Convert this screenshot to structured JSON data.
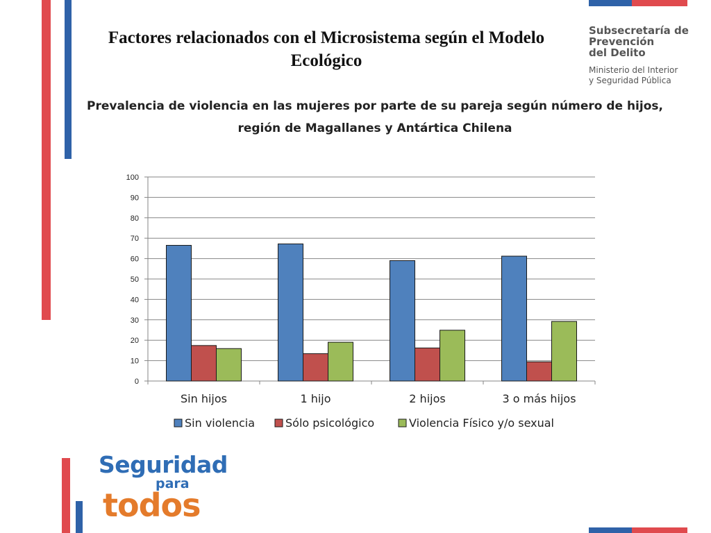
{
  "slide": {
    "title": "Factores relacionados con el Microsistema según el Modelo Ecológico"
  },
  "logo_top": {
    "line1": "Subsecretaría de",
    "line2": "Prevención",
    "line3": "del Delito",
    "line4": "Ministerio del Interior",
    "line5": "y Seguridad Pública"
  },
  "logo_bottom": {
    "word1": "Seguridad",
    "word2": "para",
    "word3": "todos"
  },
  "colors": {
    "stripe_red": "#e04a4e",
    "stripe_blue": "#2f62a8",
    "series_blue": "#4f81bd",
    "series_red": "#c0504d",
    "series_green": "#9bbb59",
    "gridline": "#868686"
  },
  "chart_data": {
    "type": "bar",
    "title_line1": "Prevalencia de violencia en las mujeres por parte de su pareja según número de hijos,",
    "title_line2": "región de Magallanes y Antártica Chilena",
    "categories": [
      "Sin hijos",
      "1 hijo",
      "2 hijos",
      "3 o más hijos"
    ],
    "series": [
      {
        "name": "Sin violencia",
        "color": "#4f81bd",
        "values": [
          66.5,
          67.2,
          59,
          61.2
        ]
      },
      {
        "name": "Sólo psicológico",
        "color": "#c0504d",
        "values": [
          17.4,
          13.4,
          16.2,
          9.4
        ]
      },
      {
        "name": "Violencia Físico y/o sexual",
        "color": "#9bbb59",
        "values": [
          15.9,
          19,
          24.9,
          29.2
        ]
      }
    ],
    "ylim": [
      0,
      100
    ],
    "yticks": [
      "0",
      "10",
      "20",
      "30",
      "40",
      "50",
      "60",
      "70",
      "80",
      "90",
      "100"
    ],
    "grid": true,
    "legend": "bottom"
  }
}
